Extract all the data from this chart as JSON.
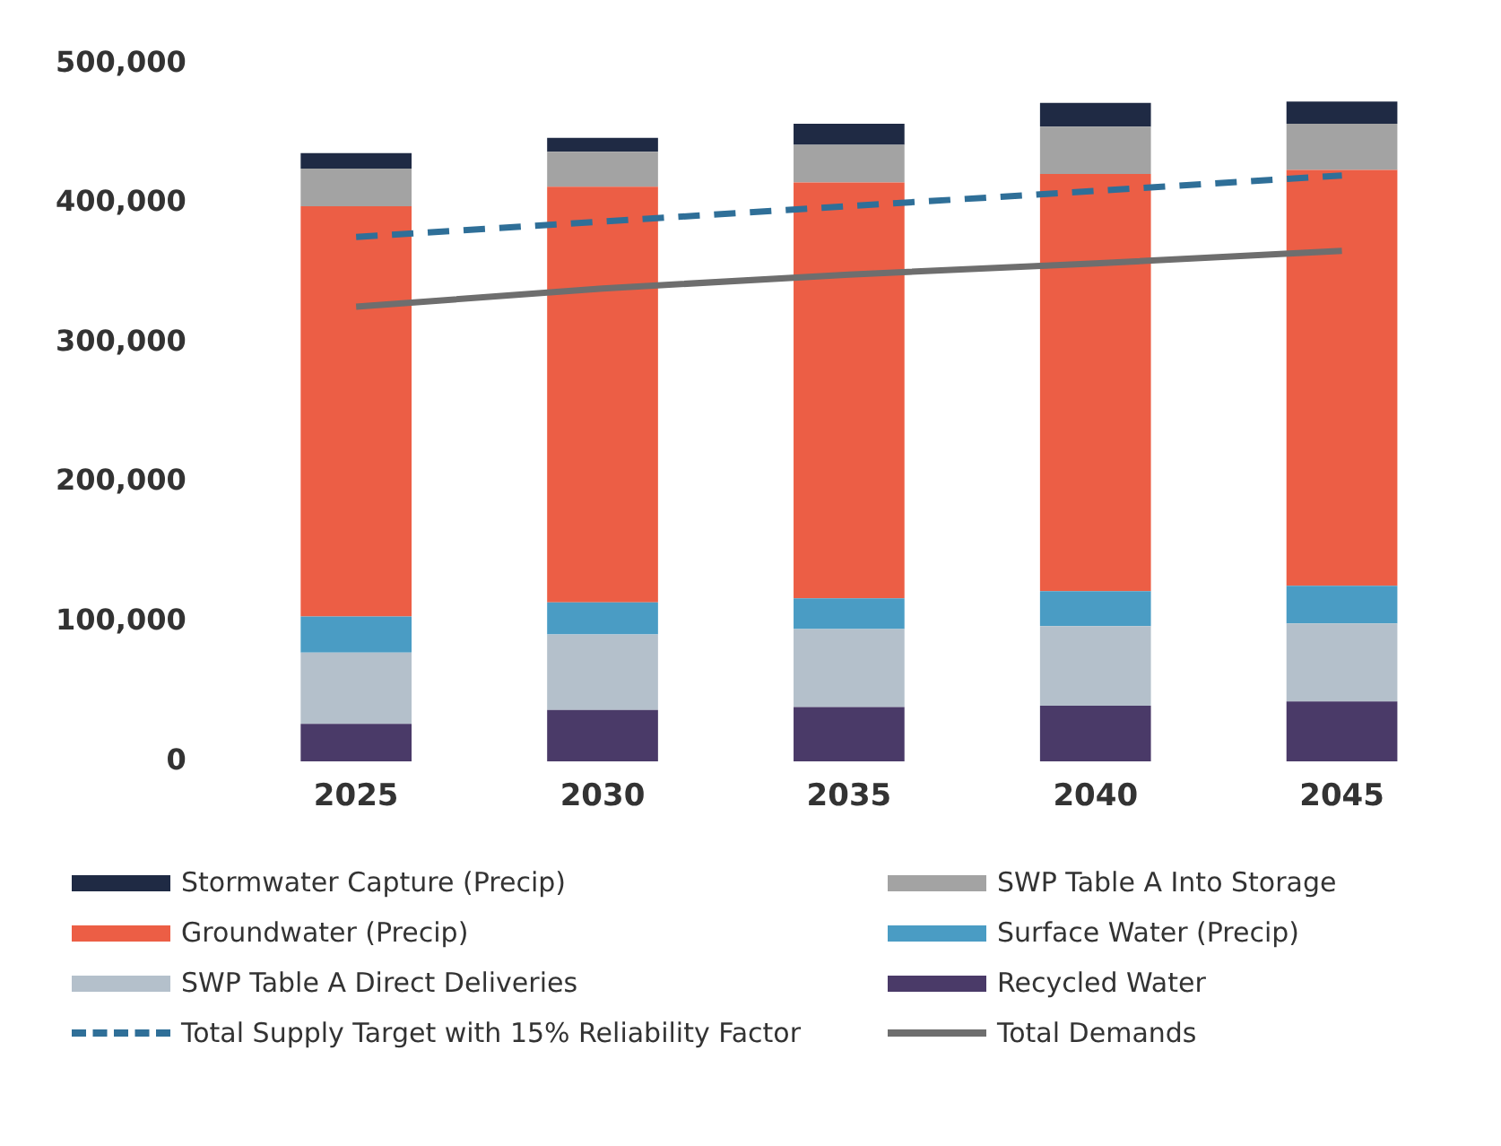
{
  "chart_data": {
    "type": "bar",
    "stacked": true,
    "categories": [
      "2025",
      "2030",
      "2035",
      "2040",
      "2045"
    ],
    "series": [
      {
        "name": "Recycled Water",
        "color": "#4a3a68",
        "values": [
          27000,
          37000,
          39000,
          40000,
          43000
        ]
      },
      {
        "name": "SWP Table A Direct Deliveries",
        "color": "#b4c0cb",
        "values": [
          51000,
          54000,
          56000,
          57000,
          56000
        ]
      },
      {
        "name": "Surface Water (Precip)",
        "color": "#4a9cc4",
        "values": [
          26000,
          23000,
          22000,
          25000,
          27000
        ]
      },
      {
        "name": "Groundwater (Precip)",
        "color": "#ec5e45",
        "values": [
          294000,
          298000,
          298000,
          299000,
          298000
        ]
      },
      {
        "name": "SWP Table A Into Storage",
        "color": "#a3a3a3",
        "values": [
          27000,
          25000,
          27000,
          34000,
          33000
        ]
      },
      {
        "name": "Stormwater Capture (Precip)",
        "color": "#1f2a44",
        "values": [
          11000,
          10000,
          15000,
          17000,
          16000
        ]
      },
      {
        "name": "Total Supply Target with 15% Reliability Factor",
        "type": "line",
        "line_style": "dashed",
        "color": "#2f6f98",
        "values": [
          376000,
          387000,
          398000,
          409000,
          420000
        ]
      },
      {
        "name": "Total Demands",
        "type": "line",
        "line_style": "solid",
        "color": "#6e6e6e",
        "values": [
          326000,
          339000,
          349000,
          357000,
          366000
        ]
      }
    ],
    "ylim": [
      0,
      500000
    ],
    "yticks": [
      0,
      {
        "value": 100000,
        "label": "100,000"
      },
      {
        "value": 200000,
        "label": "200,000"
      },
      {
        "value": 300000,
        "label": "300,000"
      },
      {
        "value": 400000,
        "label": "400,000"
      },
      {
        "value": 500000,
        "label": "500,000"
      }
    ],
    "grid": false,
    "legend": "bottom",
    "marker": "none"
  }
}
